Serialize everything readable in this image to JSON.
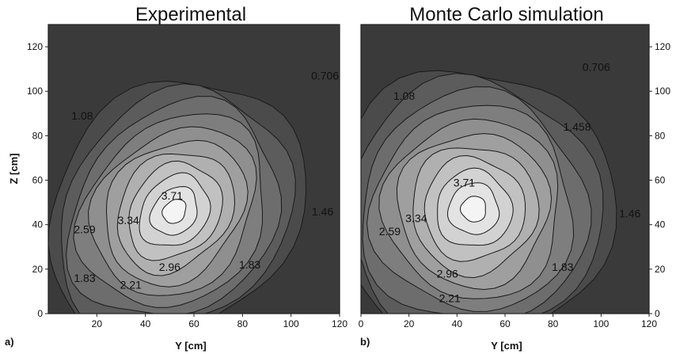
{
  "chart_data": [
    {
      "type": "heatmap",
      "subtype": "contour",
      "panel_label": "a)",
      "title": "Experimental",
      "xlabel": "Y [cm]",
      "ylabel": "Z [cm]",
      "xlim": [
        0,
        120
      ],
      "ylim": [
        0,
        130
      ],
      "xticks": [
        "20",
        "40",
        "60",
        "80",
        "100",
        "120"
      ],
      "yticks": [
        "0",
        "20",
        "40",
        "60",
        "80",
        "100",
        "120"
      ],
      "ytick_side": "left",
      "contour_labels": [
        {
          "text": "0.706",
          "y": 114,
          "z": 107
        },
        {
          "text": "1.08",
          "y": 14,
          "z": 89
        },
        {
          "text": "3.71",
          "y": 51,
          "z": 53
        },
        {
          "text": "3.34",
          "y": 33,
          "z": 42
        },
        {
          "text": "2.59",
          "y": 15,
          "z": 38
        },
        {
          "text": "1.46",
          "y": 113,
          "z": 46
        },
        {
          "text": "2.96",
          "y": 50,
          "z": 21
        },
        {
          "text": "1.83",
          "y": 83,
          "z": 22
        },
        {
          "text": "1.83",
          "y": 15,
          "z": 16
        },
        {
          "text": "2.21",
          "y": 34,
          "z": 13
        }
      ],
      "peak": {
        "y": 52,
        "z": 46
      },
      "spread": {
        "y": 27,
        "z": 31
      }
    },
    {
      "type": "heatmap",
      "subtype": "contour",
      "panel_label": "b)",
      "title": "Monte Carlo simulation",
      "xlabel": "Y [cm]",
      "ylabel": "",
      "xlim": [
        0,
        120
      ],
      "ylim": [
        0,
        130
      ],
      "xticks": [
        "0",
        "20",
        "40",
        "60",
        "80",
        "100",
        "120"
      ],
      "yticks": [
        "0",
        "20",
        "40",
        "60",
        "80",
        "100",
        "120"
      ],
      "ytick_side": "right",
      "contour_labels": [
        {
          "text": "0.706",
          "y": 98,
          "z": 111
        },
        {
          "text": "1.08",
          "y": 18,
          "z": 98
        },
        {
          "text": "1.458",
          "y": 90,
          "z": 84
        },
        {
          "text": "3.71",
          "y": 43,
          "z": 59
        },
        {
          "text": "3.34",
          "y": 23,
          "z": 43
        },
        {
          "text": "2.59",
          "y": 12,
          "z": 37
        },
        {
          "text": "1.46",
          "y": 112,
          "z": 45
        },
        {
          "text": "2.96",
          "y": 36,
          "z": 18
        },
        {
          "text": "1.83",
          "y": 84,
          "z": 21
        },
        {
          "text": "2.21",
          "y": 37,
          "z": 7
        }
      ],
      "peak": {
        "y": 47,
        "z": 47
      },
      "spread": {
        "y": 30,
        "z": 33
      }
    }
  ],
  "colors": {
    "dark": "#3a3a3a",
    "light": "#f4f4f4",
    "line": "#1a1a1a",
    "frame": "#222222"
  }
}
